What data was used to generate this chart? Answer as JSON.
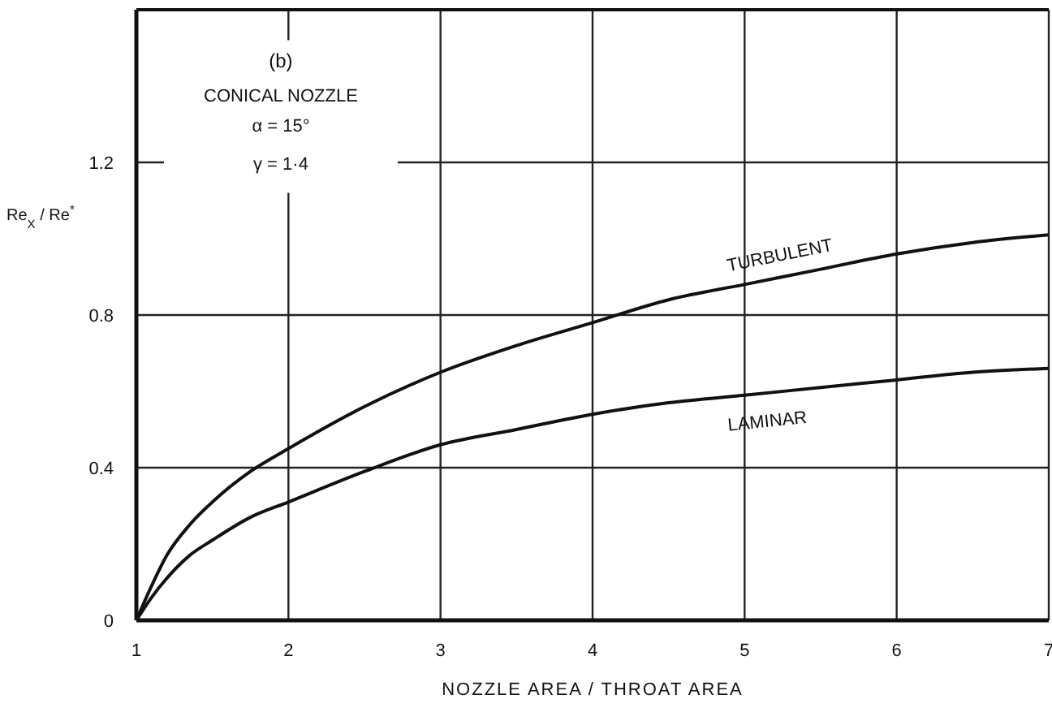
{
  "chart_data": {
    "type": "line",
    "xlabel": "NOZZLE AREA / THROAT AREA",
    "ylabel": "Re$_{X}$ / Re$^{*}$",
    "xlim": [
      1,
      7
    ],
    "ylim": [
      0,
      1.6
    ],
    "xticks": [
      1,
      2,
      3,
      4,
      5,
      6,
      7
    ],
    "yticks": [
      0,
      0.4,
      0.8,
      1.2
    ],
    "grid": true,
    "legend": false,
    "line_style": "solid",
    "annotations": [
      "(b)",
      "CONICAL NOZZLE",
      "α = 15°",
      "γ = 1·4"
    ],
    "series": [
      {
        "name": "TURBULENT",
        "color": "#111111",
        "x": [
          1,
          1.1,
          1.2,
          1.35,
          1.5,
          1.75,
          2,
          2.5,
          3,
          3.5,
          4,
          4.5,
          5,
          5.5,
          6,
          6.5,
          7
        ],
        "values": [
          0,
          0.09,
          0.17,
          0.25,
          0.31,
          0.39,
          0.45,
          0.56,
          0.65,
          0.72,
          0.78,
          0.84,
          0.88,
          0.92,
          0.96,
          0.99,
          1.01
        ]
      },
      {
        "name": "LAMINAR",
        "color": "#111111",
        "x": [
          1,
          1.1,
          1.2,
          1.35,
          1.5,
          1.75,
          2,
          2.5,
          3,
          3.5,
          4,
          4.5,
          5,
          5.5,
          6,
          6.5,
          7
        ],
        "values": [
          0,
          0.06,
          0.11,
          0.17,
          0.21,
          0.27,
          0.31,
          0.39,
          0.46,
          0.5,
          0.54,
          0.57,
          0.59,
          0.61,
          0.63,
          0.65,
          0.66
        ]
      }
    ]
  }
}
